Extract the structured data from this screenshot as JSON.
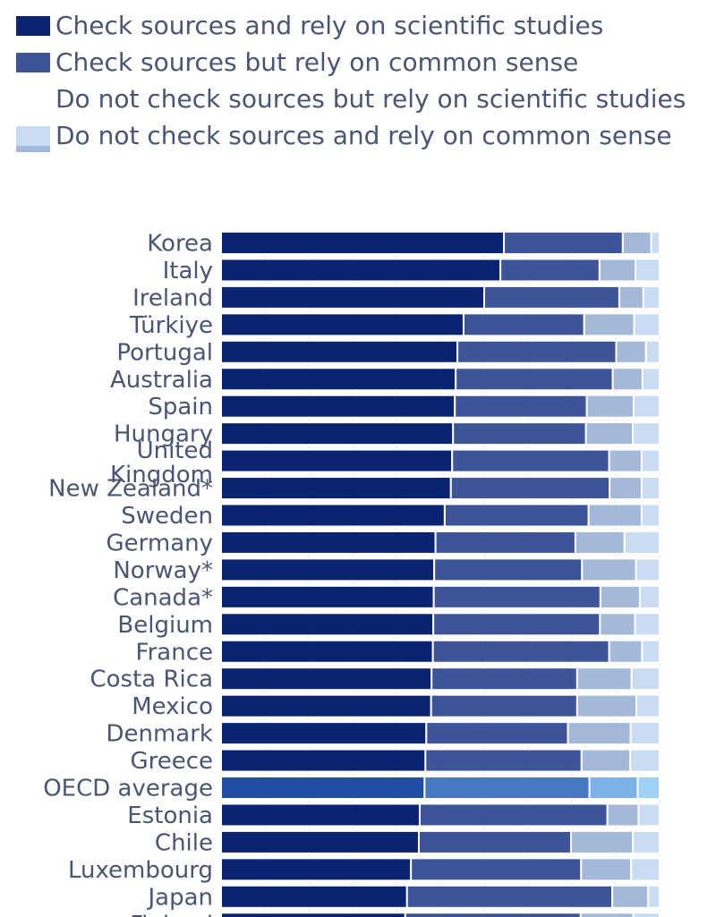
{
  "colors": {
    "check_sci": "#0b2472",
    "check_common": "#3d5499",
    "nocheck_sci": "#a4b8d9",
    "nocheck_common": "#c9dcf4",
    "avg_check_sci": "#1f4ea3",
    "avg_check_common": "#4778c2",
    "avg_nocheck_sci": "#7cb1ea",
    "avg_nocheck_common": "#9fd0f6",
    "label": "#4a5573",
    "grid": "#e6e6e6"
  },
  "chart_data": {
    "type": "bar",
    "orientation": "horizontal",
    "stacked": true,
    "grid": true,
    "legend_position": "top",
    "highlight_category": "OECD average",
    "categories": [
      "Korea",
      "Italy",
      "Ireland",
      "Türkiye",
      "Portugal",
      "Australia",
      "Spain",
      "Hungary",
      "United Kingdom",
      "New Zealand*",
      "Sweden",
      "Germany",
      "Norway*",
      "Canada*",
      "Belgium",
      "France",
      "Costa Rica",
      "Mexico",
      "Denmark",
      "Greece",
      "OECD average",
      "Estonia",
      "Chile",
      "Luxembourg",
      "Japan",
      "Finland"
    ],
    "series": [
      {
        "name": "Check sources and rely on scientific studies",
        "values": [
          64.5,
          63.7,
          60.0,
          55.3,
          53.9,
          53.5,
          53.3,
          52.9,
          52.7,
          52.4,
          51.0,
          48.9,
          48.6,
          48.5,
          48.4,
          48.3,
          48.0,
          47.9,
          46.8,
          46.6,
          46.4,
          45.3,
          45.1,
          43.3,
          42.4,
          42.0
        ]
      },
      {
        "name": "Check sources but rely on common sense",
        "values": [
          27.1,
          22.6,
          30.8,
          27.5,
          36.2,
          35.8,
          30.1,
          30.3,
          35.8,
          36.2,
          32.8,
          31.9,
          33.7,
          38.0,
          38.0,
          40.2,
          33.2,
          33.3,
          32.3,
          35.6,
          37.6,
          42.8,
          34.7,
          38.8,
          46.8,
          40.0
        ]
      },
      {
        "name": "Do not check sources but rely on scientific studies",
        "values": [
          6.5,
          8.2,
          5.5,
          11.4,
          6.8,
          6.8,
          10.7,
          10.7,
          7.4,
          7.3,
          12.1,
          11.2,
          12.3,
          9.0,
          8.0,
          7.5,
          12.4,
          13.5,
          14.3,
          11.1,
          11.0,
          7.1,
          14.1,
          11.4,
          8.2,
          12.0
        ]
      },
      {
        "name": "Do not check sources and rely on common sense",
        "values": [
          1.9,
          5.5,
          3.7,
          5.8,
          3.1,
          3.9,
          5.9,
          6.1,
          4.1,
          4.1,
          4.1,
          8.0,
          5.4,
          4.5,
          5.6,
          4.0,
          6.4,
          5.3,
          6.6,
          6.7,
          5.0,
          4.8,
          6.1,
          6.5,
          2.6,
          6.0
        ]
      }
    ],
    "xlim": [
      0,
      100
    ]
  }
}
